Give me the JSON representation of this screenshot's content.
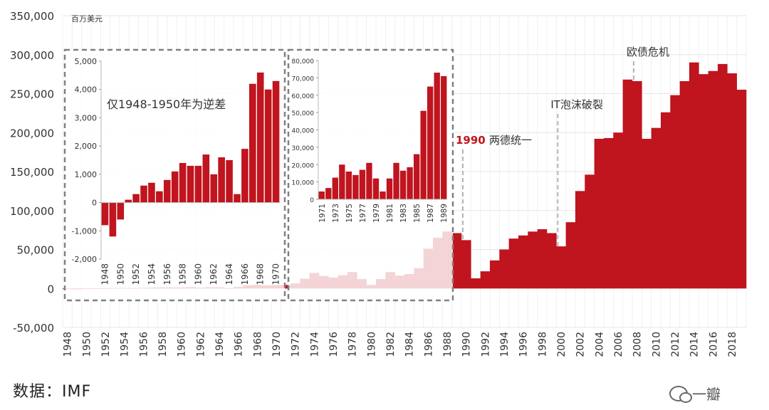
{
  "colors": {
    "bar": "#c0141e",
    "grid": "#e6e6e6",
    "dash_box": "#808080",
    "marker": "#b5b5b5",
    "highlight": "#c0141e"
  },
  "unit_label": "百万美元",
  "source_label": "数据：IMF",
  "watermark": "一瓣",
  "chart_data": [
    {
      "type": "bar",
      "title": "",
      "unit": "百万美元",
      "ylim": [
        -50000,
        350000
      ],
      "yticks": [
        "350,000",
        "300,000",
        "250,000",
        "200,000",
        "150,000",
        "100,000",
        "50,000",
        "0",
        "-50,000"
      ],
      "ytick_values": [
        350000,
        300000,
        250000,
        200000,
        150000,
        100000,
        50000,
        0,
        -50000
      ],
      "x": [
        1948,
        1949,
        1950,
        1951,
        1952,
        1953,
        1954,
        1955,
        1956,
        1957,
        1958,
        1959,
        1960,
        1961,
        1962,
        1963,
        1964,
        1965,
        1966,
        1967,
        1968,
        1969,
        1970,
        1971,
        1972,
        1973,
        1974,
        1975,
        1976,
        1977,
        1978,
        1979,
        1980,
        1981,
        1982,
        1983,
        1984,
        1985,
        1986,
        1987,
        1988,
        1989,
        1990,
        1991,
        1992,
        1993,
        1994,
        1995,
        1996,
        1997,
        1998,
        1999,
        2000,
        2001,
        2002,
        2003,
        2004,
        2005,
        2006,
        2007,
        2008,
        2009,
        2010,
        2011,
        2012,
        2013,
        2014,
        2015,
        2016,
        2017,
        2018,
        2019
      ],
      "xtick_labels": [
        "1948",
        "1950",
        "1952",
        "1954",
        "1956",
        "1958",
        "1960",
        "1962",
        "1964",
        "1966",
        "1968",
        "1970",
        "1972",
        "1974",
        "1976",
        "1978",
        "1980",
        "1982",
        "1984",
        "1986",
        "1988",
        "1990",
        "1992",
        "1994",
        "1996",
        "1998",
        "2000",
        "2002",
        "2004",
        "2006",
        "2008",
        "2010",
        "2012",
        "2014",
        "2016",
        "2018"
      ],
      "values": [
        -800,
        -1200,
        -600,
        100,
        300,
        600,
        700,
        400,
        800,
        1100,
        1400,
        1300,
        1300,
        1700,
        1000,
        1600,
        1500,
        300,
        1900,
        4200,
        4600,
        4000,
        4300,
        4500,
        6500,
        12500,
        20000,
        16000,
        14000,
        17000,
        21000,
        12000,
        4500,
        12000,
        21000,
        16500,
        18500,
        26000,
        51000,
        65000,
        73000,
        71000,
        62000,
        13000,
        22000,
        36000,
        50000,
        64000,
        68000,
        73000,
        76000,
        71000,
        54000,
        85000,
        125000,
        146000,
        192000,
        193000,
        200000,
        268000,
        266000,
        192000,
        206000,
        226000,
        248000,
        266000,
        290000,
        275000,
        279000,
        288000,
        276000,
        255000
      ],
      "annotations": [
        {
          "year": 1990,
          "label_red": "1990",
          "label": "两德统一"
        },
        {
          "year": 2000,
          "label": "IT泡沫破裂"
        },
        {
          "year": 2008,
          "label": "欧债危机"
        }
      ]
    },
    {
      "type": "bar",
      "title": "仅1948-1950年为逆差",
      "ylim": [
        -2000,
        5000
      ],
      "yticks": [
        "5,000",
        "4,000",
        "3,000",
        "2,000",
        "1,000",
        "0",
        "-1,000",
        "-2,000"
      ],
      "ytick_values": [
        5000,
        4000,
        3000,
        2000,
        1000,
        0,
        -1000,
        -2000
      ],
      "x": [
        1948,
        1949,
        1950,
        1951,
        1952,
        1953,
        1954,
        1955,
        1956,
        1957,
        1958,
        1959,
        1960,
        1961,
        1962,
        1963,
        1964,
        1965,
        1966,
        1967,
        1968,
        1969,
        1970
      ],
      "xtick_labels": [
        "1948",
        "1950",
        "1952",
        "1954",
        "1956",
        "1958",
        "1960",
        "1962",
        "1964",
        "1966",
        "1968",
        "1970"
      ],
      "values": [
        -800,
        -1200,
        -600,
        100,
        300,
        600,
        700,
        400,
        800,
        1100,
        1400,
        1300,
        1300,
        1700,
        1000,
        1600,
        1500,
        300,
        1900,
        4200,
        4600,
        4000,
        4300
      ]
    },
    {
      "type": "bar",
      "title": "",
      "ylim": [
        0,
        80000
      ],
      "yticks": [
        "80,000",
        "70,000",
        "60,000",
        "50,000",
        "40,000",
        "30,000",
        "20,000",
        "10,000",
        "0"
      ],
      "ytick_values": [
        80000,
        70000,
        60000,
        50000,
        40000,
        30000,
        20000,
        10000,
        0
      ],
      "x": [
        1971,
        1972,
        1973,
        1974,
        1975,
        1976,
        1977,
        1978,
        1979,
        1980,
        1981,
        1982,
        1983,
        1984,
        1985,
        1986,
        1987,
        1988,
        1989
      ],
      "xtick_labels": [
        "1971",
        "1973",
        "1975",
        "1977",
        "1979",
        "1981",
        "1983",
        "1985",
        "1987",
        "1989"
      ],
      "values": [
        4500,
        6500,
        12500,
        20000,
        16000,
        14000,
        17000,
        21000,
        12000,
        4500,
        12000,
        21000,
        16500,
        18500,
        26000,
        51000,
        65000,
        73000,
        71000
      ]
    }
  ]
}
